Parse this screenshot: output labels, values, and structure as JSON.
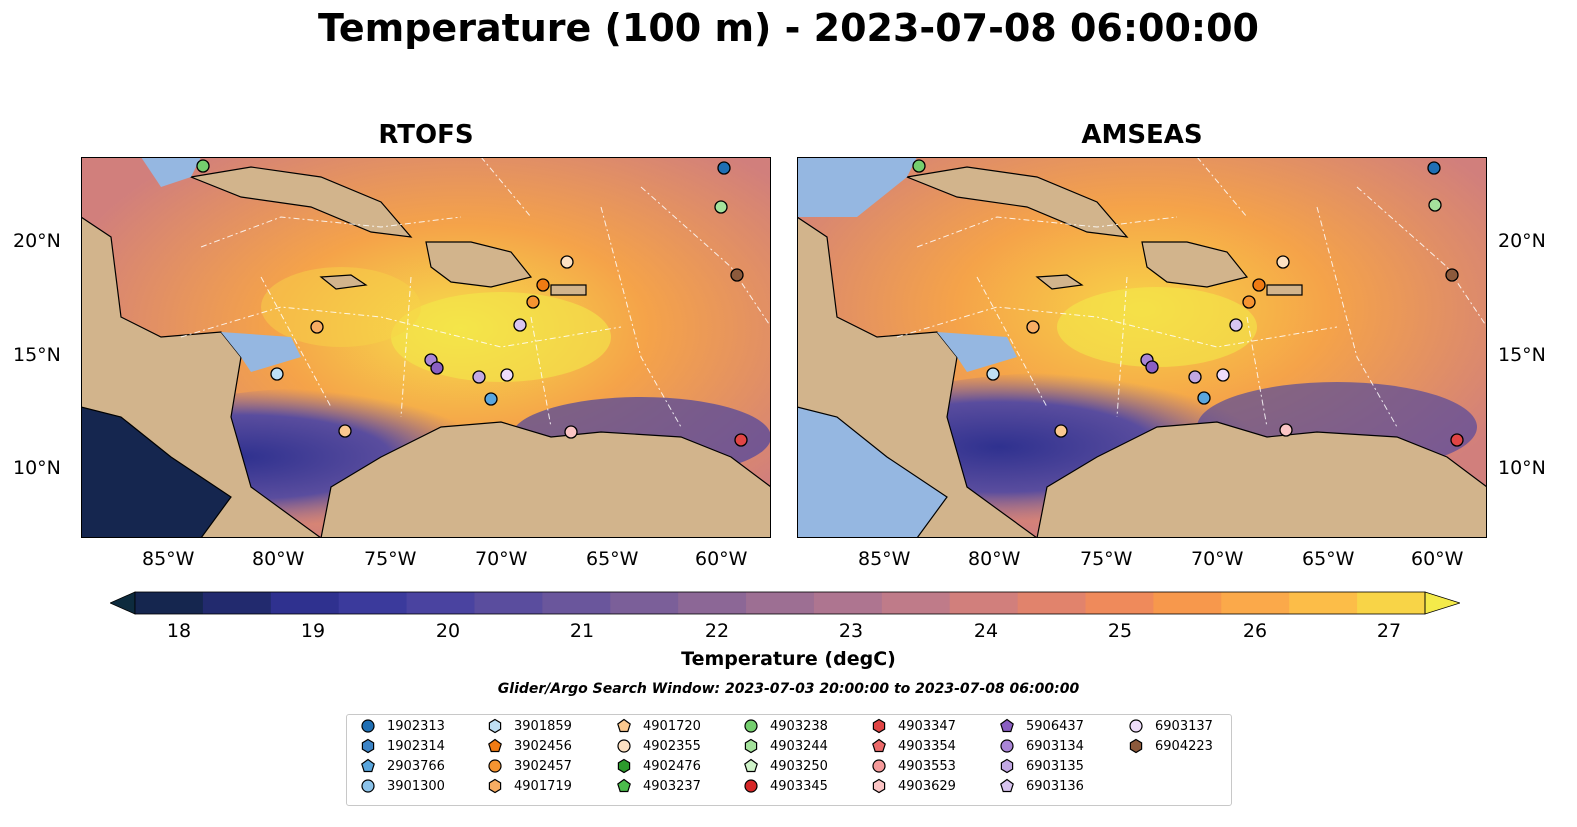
{
  "title": "Temperature (100 m) - 2023-07-08 06:00:00",
  "panels": [
    {
      "title": "RTOFS"
    },
    {
      "title": "AMSEAS"
    }
  ],
  "axes": {
    "lon_ticks": [
      "85°W",
      "80°W",
      "75°W",
      "70°W",
      "65°W",
      "60°W"
    ],
    "lat_ticks": [
      "20°N",
      "15°N",
      "10°N"
    ]
  },
  "colorbar": {
    "label": "Temperature (degC)",
    "ticks": [
      "18",
      "19",
      "20",
      "21",
      "22",
      "23",
      "24",
      "25",
      "26",
      "27"
    ],
    "colors": [
      "#0d2b3e",
      "#15264f",
      "#222a6e",
      "#2f318f",
      "#3b3a9c",
      "#4a43a0",
      "#5a4d9e",
      "#6a569c",
      "#7b5f99",
      "#8c6796",
      "#9d6f93",
      "#ae7590",
      "#bf7b89",
      "#d17f7c",
      "#e1836c",
      "#ef8a5b",
      "#f7984c",
      "#fba94a",
      "#fcbd48",
      "#f8d447",
      "#f4ea4a"
    ],
    "extend": "both"
  },
  "search_window": "Glider/Argo Search Window: 2023-07-03 20:00:00 to 2023-07-08 06:00:00",
  "legend": [
    {
      "label": "1902313",
      "marker": "circle",
      "color": "#1f6fb4"
    },
    {
      "label": "1902314",
      "marker": "hexagon",
      "color": "#3d84c6"
    },
    {
      "label": "2903766",
      "marker": "pentagon",
      "color": "#5aa6dd"
    },
    {
      "label": "3901300",
      "marker": "circle",
      "color": "#8cc3ea"
    },
    {
      "label": "3901859",
      "marker": "hexagon",
      "color": "#bfe0f5"
    },
    {
      "label": "3902456",
      "marker": "pentagon",
      "color": "#f07b13"
    },
    {
      "label": "3902457",
      "marker": "circle",
      "color": "#f59431"
    },
    {
      "label": "4901719",
      "marker": "hexagon",
      "color": "#f8ad63"
    },
    {
      "label": "4901720",
      "marker": "pentagon",
      "color": "#fbc88f"
    },
    {
      "label": "4902355",
      "marker": "circle",
      "color": "#fde1c2"
    },
    {
      "label": "4902476",
      "marker": "hexagon",
      "color": "#2c9a2c"
    },
    {
      "label": "4903237",
      "marker": "pentagon",
      "color": "#4cbc4c"
    },
    {
      "label": "4903238",
      "marker": "circle",
      "color": "#74cf6e"
    },
    {
      "label": "4903244",
      "marker": "hexagon",
      "color": "#a4e29c"
    },
    {
      "label": "4903250",
      "marker": "pentagon",
      "color": "#cff3c9"
    },
    {
      "label": "4903345",
      "marker": "circle",
      "color": "#d62728"
    },
    {
      "label": "4903347",
      "marker": "hexagon",
      "color": "#e04545"
    },
    {
      "label": "4903354",
      "marker": "pentagon",
      "color": "#ec6a6a"
    },
    {
      "label": "4903553",
      "marker": "circle",
      "color": "#f59a9a"
    },
    {
      "label": "4903629",
      "marker": "hexagon",
      "color": "#fbc5c5"
    },
    {
      "label": "5906437",
      "marker": "pentagon",
      "color": "#8a5fc2"
    },
    {
      "label": "6903134",
      "marker": "circle",
      "color": "#a985d6"
    },
    {
      "label": "6903135",
      "marker": "hexagon",
      "color": "#c2a8e3"
    },
    {
      "label": "6903136",
      "marker": "pentagon",
      "color": "#d9c5f0"
    },
    {
      "label": "6903137",
      "marker": "circle",
      "color": "#eedcfa"
    },
    {
      "label": "6904223",
      "marker": "hexagon",
      "color": "#8c5a3c"
    }
  ],
  "map_colors": {
    "land": "#d2b48c",
    "deep_ocean": "#95b7e1",
    "coast": "#000000"
  }
}
